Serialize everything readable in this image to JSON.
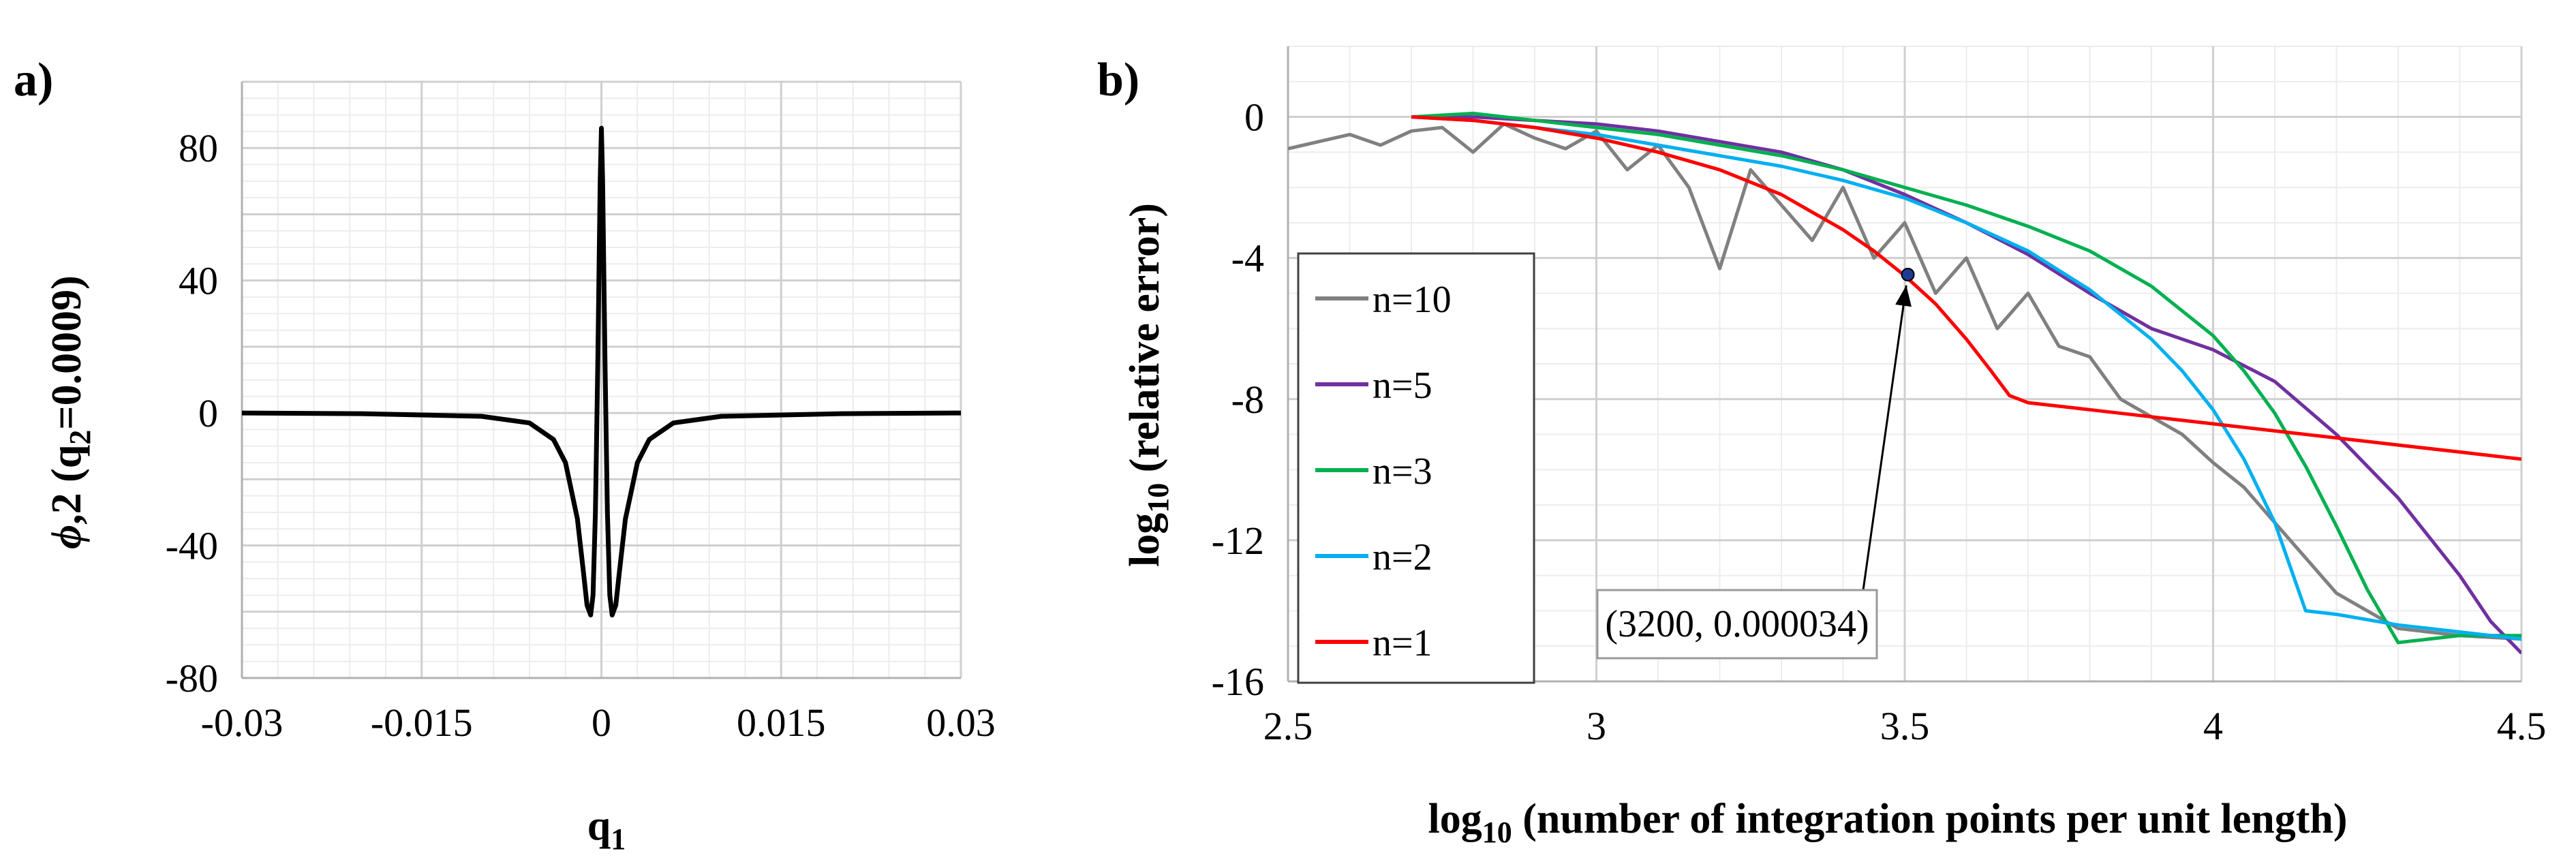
{
  "chart_data": [
    {
      "panel": "a)",
      "type": "line",
      "xlabel": "q",
      "xlabel_sub": "1",
      "ylabel_phi": "ϕ",
      "ylabel_rest": ",2 (q",
      "ylabel_sub": "2",
      "ylabel_end": "=0.0009)",
      "xlim": [
        -0.03,
        0.03
      ],
      "ylim": [
        -80,
        100
      ],
      "xticks": [
        -0.03,
        -0.015,
        0,
        0.015,
        0.03
      ],
      "xtick_labels": [
        "-0.03",
        "-0.015",
        "0",
        "0.015",
        "0.03"
      ],
      "yticks": [
        -80,
        -40,
        0,
        40,
        80
      ],
      "ytick_labels": [
        "-80",
        "-40",
        "0",
        "40",
        "80"
      ],
      "series": [
        {
          "name": "phi_2",
          "color": "#000000",
          "x": [
            -0.03,
            -0.02,
            -0.01,
            -0.006,
            -0.004,
            -0.003,
            -0.002,
            -0.0015,
            -0.0012,
            -0.0009,
            -0.0007,
            -0.0005,
            -0.0003,
            -0.0001,
            0,
            0.0001,
            0.0003,
            0.0005,
            0.0007,
            0.0009,
            0.0012,
            0.0015,
            0.002,
            0.003,
            0.004,
            0.006,
            0.01,
            0.02,
            0.03
          ],
          "y": [
            0,
            -0.2,
            -1,
            -3,
            -8,
            -15,
            -32,
            -48,
            -58,
            -61,
            -55,
            -30,
            15,
            70,
            86,
            70,
            15,
            -30,
            -55,
            -61,
            -58,
            -48,
            -32,
            -15,
            -8,
            -3,
            -1,
            -0.2,
            0
          ]
        }
      ]
    },
    {
      "panel": "b)",
      "type": "line",
      "xlabel": "log",
      "xlabel_sub": "10",
      "xlabel_rest": " (number of integration points per unit length)",
      "ylabel": "log",
      "ylabel_sub": "10",
      "ylabel_rest": " (relative error)",
      "xlim": [
        2.5,
        4.5
      ],
      "ylim": [
        -16,
        2
      ],
      "xticks": [
        2.5,
        3,
        3.5,
        4,
        4.5
      ],
      "xtick_labels": [
        "2.5",
        "3",
        "3.5",
        "4",
        "4.5"
      ],
      "yticks": [
        -16,
        -12,
        -8,
        -4,
        0
      ],
      "ytick_labels": [
        "-16",
        "-12",
        "-8",
        "-4",
        "0"
      ],
      "legend": [
        "n=10",
        "n=5",
        "n=3",
        "n=2",
        "n=1"
      ],
      "annotation": {
        "text": "(3200, 0.000034)",
        "x": 3.505,
        "y": -4.47
      },
      "series": [
        {
          "name": "n=10",
          "color": "#808080",
          "x": [
            2.5,
            2.55,
            2.6,
            2.65,
            2.7,
            2.75,
            2.8,
            2.85,
            2.9,
            2.95,
            3.0,
            3.05,
            3.1,
            3.15,
            3.2,
            3.25,
            3.3,
            3.35,
            3.4,
            3.45,
            3.5,
            3.55,
            3.6,
            3.65,
            3.7,
            3.75,
            3.8,
            3.85,
            3.9,
            3.95,
            4.0,
            4.05,
            4.1,
            4.15,
            4.2,
            4.3,
            4.4,
            4.5
          ],
          "y": [
            -0.9,
            -0.7,
            -0.5,
            -0.8,
            -0.4,
            -0.3,
            -1.0,
            -0.2,
            -0.6,
            -0.9,
            -0.4,
            -1.5,
            -0.8,
            -2.0,
            -4.3,
            -1.5,
            -2.5,
            -3.5,
            -2.0,
            -4.0,
            -3.0,
            -5.0,
            -4.0,
            -6.0,
            -5.0,
            -6.5,
            -6.8,
            -8.0,
            -8.5,
            -9.0,
            -9.8,
            -10.5,
            -11.5,
            -12.5,
            -13.5,
            -14.5,
            -14.7,
            -14.8
          ]
        },
        {
          "name": "n=5",
          "color": "#7030A0",
          "x": [
            2.7,
            2.8,
            2.9,
            3.0,
            3.1,
            3.2,
            3.3,
            3.4,
            3.5,
            3.6,
            3.7,
            3.8,
            3.9,
            4.0,
            4.1,
            4.2,
            4.3,
            4.4,
            4.45,
            4.5
          ],
          "y": [
            0.0,
            0.0,
            -0.1,
            -0.2,
            -0.4,
            -0.7,
            -1.0,
            -1.5,
            -2.2,
            -3.0,
            -3.9,
            -5.0,
            -6.0,
            -6.6,
            -7.5,
            -9.0,
            -10.8,
            -13.0,
            -14.3,
            -15.2
          ]
        },
        {
          "name": "n=3",
          "color": "#00B050",
          "x": [
            2.7,
            2.8,
            2.9,
            3.0,
            3.1,
            3.2,
            3.3,
            3.4,
            3.5,
            3.6,
            3.7,
            3.8,
            3.9,
            4.0,
            4.05,
            4.1,
            4.15,
            4.2,
            4.25,
            4.3,
            4.35,
            4.4,
            4.5
          ],
          "y": [
            0.0,
            0.1,
            -0.1,
            -0.3,
            -0.5,
            -0.8,
            -1.1,
            -1.5,
            -2.0,
            -2.5,
            -3.1,
            -3.8,
            -4.8,
            -6.2,
            -7.2,
            -8.4,
            -9.9,
            -11.6,
            -13.4,
            -14.9,
            -14.8,
            -14.7,
            -14.7
          ]
        },
        {
          "name": "n=2",
          "color": "#00B0F0",
          "x": [
            2.7,
            2.8,
            2.9,
            3.0,
            3.1,
            3.2,
            3.3,
            3.4,
            3.5,
            3.6,
            3.7,
            3.8,
            3.9,
            3.95,
            4.0,
            4.05,
            4.1,
            4.15,
            4.2,
            4.3,
            4.4,
            4.5
          ],
          "y": [
            0.0,
            -0.1,
            -0.3,
            -0.5,
            -0.8,
            -1.1,
            -1.4,
            -1.8,
            -2.3,
            -3.0,
            -3.8,
            -4.9,
            -6.3,
            -7.2,
            -8.3,
            -9.7,
            -11.5,
            -14.0,
            -14.1,
            -14.4,
            -14.6,
            -14.8
          ]
        },
        {
          "name": "n=1",
          "color": "#FF0000",
          "x": [
            2.7,
            2.8,
            2.9,
            3.0,
            3.1,
            3.2,
            3.3,
            3.35,
            3.4,
            3.45,
            3.5,
            3.55,
            3.6,
            3.64,
            3.67,
            3.7,
            3.75,
            3.8,
            3.9,
            4.0,
            4.1,
            4.2,
            4.3,
            4.4,
            4.5
          ],
          "y": [
            0.0,
            -0.1,
            -0.3,
            -0.6,
            -1.0,
            -1.5,
            -2.2,
            -2.7,
            -3.2,
            -3.8,
            -4.5,
            -5.3,
            -6.3,
            -7.2,
            -7.9,
            -8.1,
            -8.2,
            -8.3,
            -8.5,
            -8.7,
            -8.9,
            -9.1,
            -9.3,
            -9.5,
            -9.7
          ]
        }
      ]
    }
  ]
}
